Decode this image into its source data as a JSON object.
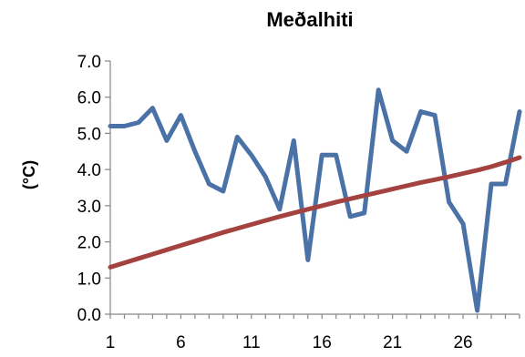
{
  "chart_data": {
    "type": "line",
    "title": "Meðalhiti",
    "xlabel": "",
    "ylabel": "(°C)",
    "ylim": [
      0,
      7
    ],
    "xlim": [
      1,
      30
    ],
    "yticks": [
      "0.0",
      "1.0",
      "2.0",
      "3.0",
      "4.0",
      "5.0",
      "6.0",
      "7.0"
    ],
    "xticks": [
      "1",
      "6",
      "11",
      "16",
      "21",
      "26"
    ],
    "grid": false,
    "legend": "none",
    "x": [
      1,
      2,
      3,
      4,
      5,
      6,
      7,
      8,
      9,
      10,
      11,
      12,
      13,
      14,
      15,
      16,
      17,
      18,
      19,
      20,
      21,
      22,
      23,
      24,
      25,
      26,
      27,
      28,
      29,
      30
    ],
    "series": [
      {
        "color": "#4a72a6",
        "values": [
          5.2,
          5.2,
          5.3,
          5.7,
          4.8,
          5.5,
          4.5,
          3.6,
          3.4,
          4.9,
          4.4,
          3.8,
          2.9,
          4.8,
          1.5,
          4.4,
          4.4,
          2.7,
          2.8,
          6.2,
          4.8,
          4.5,
          5.6,
          5.5,
          3.1,
          2.5,
          0.1,
          3.6,
          3.6,
          5.6
        ]
      },
      {
        "color": "#a3423f",
        "values": [
          1.3,
          1.42,
          1.54,
          1.66,
          1.78,
          1.9,
          2.02,
          2.14,
          2.26,
          2.37,
          2.48,
          2.59,
          2.7,
          2.8,
          2.9,
          3.0,
          3.1,
          3.19,
          3.28,
          3.37,
          3.46,
          3.55,
          3.64,
          3.72,
          3.8,
          3.89,
          3.98,
          4.08,
          4.2,
          4.33
        ]
      }
    ]
  }
}
